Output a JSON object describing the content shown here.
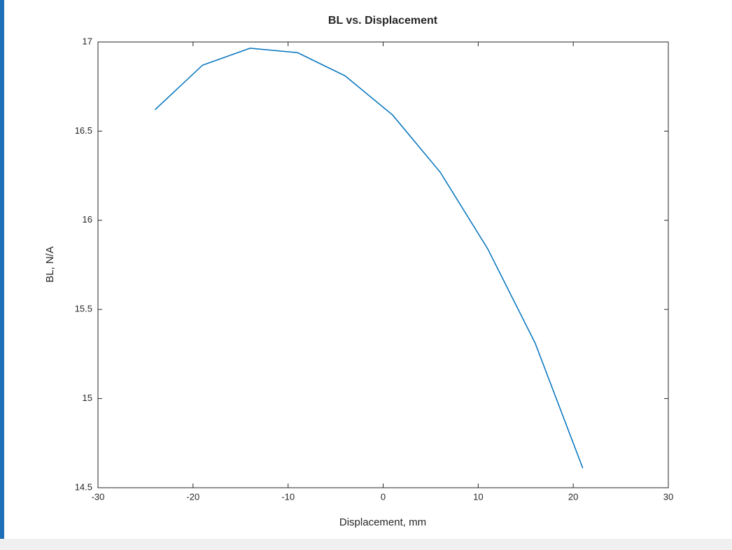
{
  "chart_data": {
    "type": "line",
    "title": "BL vs. Displacement",
    "x_label": "Displacement, mm",
    "y_label": "BL, N/A",
    "x": [
      -24,
      -19,
      -14,
      -9,
      -4,
      1,
      6,
      11,
      16,
      21
    ],
    "series": [
      {
        "color": "#0072bd",
        "values": [
          16.62,
          16.87,
          16.965,
          16.94,
          16.81,
          16.59,
          16.27,
          15.84,
          15.31,
          14.61
        ]
      }
    ],
    "xlim": [
      -30,
      30
    ],
    "xticks": [
      -30,
      -20,
      -10,
      0,
      10,
      20,
      30
    ],
    "ylim": [
      14.5,
      17
    ],
    "yticks": [
      14.5,
      15,
      15.5,
      16,
      16.5,
      17
    ]
  }
}
